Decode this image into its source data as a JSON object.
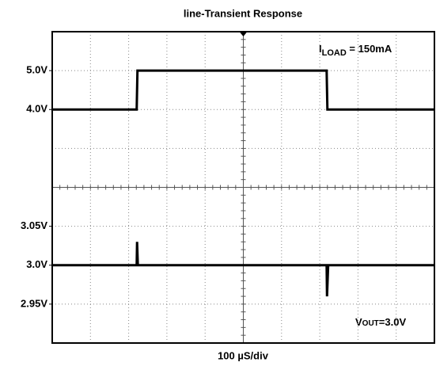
{
  "chart_data": {
    "type": "line",
    "title": "line-Transient Response",
    "xlabel": "100 µS/div",
    "annotations": [
      {
        "symbol": "I",
        "subscript": "LOAD",
        "text": " = 150mA"
      },
      {
        "symbol": "V",
        "subscript": "OUT",
        "text": "=3.0V"
      }
    ],
    "xlim": [
      0,
      1000
    ],
    "ylim": [
      2,
      6
    ],
    "yticks": [
      {
        "value": 4,
        "label": "4.0V"
      },
      {
        "value": 5,
        "label": "5.0V"
      }
    ],
    "y2lim": [
      2.9,
      3.1
    ],
    "y2ticks": [
      {
        "value": 2.95,
        "label": "2.95V"
      },
      {
        "value": 3,
        "label": "3.0V"
      },
      {
        "value": 3.05,
        "label": "3.05V"
      }
    ],
    "series": [
      {
        "color": "#000000",
        "x": [
          0,
          221,
          223,
          718,
          720,
          1000
        ],
        "values": [
          4,
          4,
          5,
          5,
          4,
          4
        ]
      },
      {
        "color": "#000000",
        "axis": "y2",
        "x": [
          0,
          221,
          222,
          224,
          718,
          719,
          722,
          1000
        ],
        "values": [
          3,
          3,
          3.03,
          3,
          3,
          2.96,
          3,
          3
        ]
      }
    ]
  }
}
